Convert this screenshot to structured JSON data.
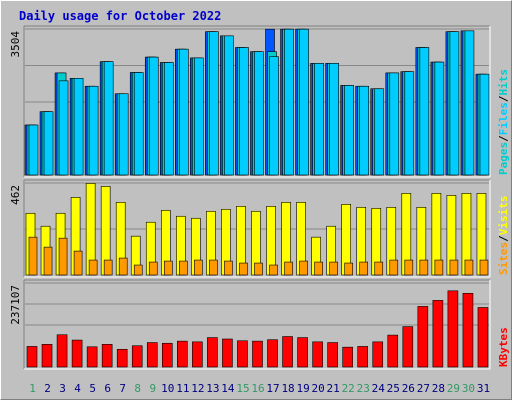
{
  "title": "Daily usage for October 2022",
  "colors": {
    "background": "#c0c0c0",
    "hits": "#00ccff",
    "files": "#00ccff",
    "pages": "#00cccc",
    "visits": "#ffff00",
    "sites": "#ff9900",
    "kbytes": "#ff0000",
    "weekend_label": "#339966",
    "weekday_label": "#000080",
    "title": "#0000cc"
  },
  "chart_data": [
    {
      "type": "bar",
      "panel": "hits-files-pages",
      "legend": [
        "Pages",
        "/",
        "Files",
        "/",
        "Hits"
      ],
      "y_max_label": "3504",
      "ylim": [
        0,
        3504
      ],
      "categories": [
        "1",
        "2",
        "3",
        "4",
        "5",
        "6",
        "7",
        "8",
        "9",
        "10",
        "11",
        "12",
        "13",
        "14",
        "15",
        "16",
        "17",
        "18",
        "19",
        "20",
        "21",
        "22",
        "23",
        "24",
        "25",
        "26",
        "27",
        "28",
        "29",
        "30",
        "31"
      ],
      "series": [
        {
          "name": "Hits",
          "values": [
            1200,
            1520,
            2450,
            2320,
            2130,
            2720,
            1950,
            2460,
            2830,
            2700,
            3020,
            2810,
            3440,
            3340,
            3060,
            2960,
            3500,
            3500,
            3500,
            2680,
            2680,
            2150,
            2130,
            2070,
            2450,
            2480,
            3060,
            2710,
            3440,
            3460,
            2420
          ]
        },
        {
          "name": "Files",
          "values": [
            1200,
            1520,
            2260,
            2320,
            2130,
            2720,
            1950,
            2460,
            2830,
            2700,
            3020,
            2810,
            3440,
            3340,
            3060,
            2960,
            2840,
            3500,
            3500,
            2680,
            2680,
            2150,
            2130,
            2070,
            2450,
            2480,
            3060,
            2710,
            3440,
            3460,
            2420
          ]
        },
        {
          "name": "Pages",
          "values": [
            1200,
            1520,
            2450,
            2320,
            2130,
            2720,
            1950,
            2460,
            2830,
            2700,
            3020,
            2810,
            3440,
            3340,
            3060,
            2960,
            2960,
            3500,
            3500,
            2680,
            2680,
            2150,
            2130,
            2070,
            2450,
            2480,
            3060,
            2710,
            3440,
            3460,
            2420
          ]
        }
      ]
    },
    {
      "type": "bar",
      "panel": "visits-sites",
      "legend": [
        "Sites",
        "/",
        "Visits"
      ],
      "y_max_label": "462",
      "ylim": [
        0,
        462
      ],
      "categories": [
        "1",
        "2",
        "3",
        "4",
        "5",
        "6",
        "7",
        "8",
        "9",
        "10",
        "11",
        "12",
        "13",
        "14",
        "15",
        "16",
        "17",
        "18",
        "19",
        "20",
        "21",
        "22",
        "23",
        "24",
        "25",
        "26",
        "27",
        "28",
        "29",
        "30",
        "31"
      ],
      "series": [
        {
          "name": "Visits",
          "values": [
            310,
            245,
            310,
            390,
            460,
            445,
            365,
            195,
            265,
            325,
            295,
            285,
            320,
            330,
            345,
            320,
            345,
            365,
            365,
            190,
            245,
            355,
            340,
            335,
            340,
            410,
            340,
            410,
            400,
            410,
            410
          ]
        },
        {
          "name": "Sites",
          "values": [
            190,
            140,
            185,
            120,
            75,
            75,
            85,
            50,
            65,
            70,
            70,
            75,
            75,
            70,
            60,
            60,
            50,
            65,
            70,
            65,
            65,
            60,
            65,
            65,
            75,
            75,
            75,
            75,
            75,
            75,
            75
          ]
        }
      ]
    },
    {
      "type": "bar",
      "panel": "kbytes",
      "legend": [
        "KBytes"
      ],
      "y_max_label": "237107",
      "ylim": [
        0,
        237107
      ],
      "categories": [
        "1",
        "2",
        "3",
        "4",
        "5",
        "6",
        "7",
        "8",
        "9",
        "10",
        "11",
        "12",
        "13",
        "14",
        "15",
        "16",
        "17",
        "18",
        "19",
        "20",
        "21",
        "22",
        "23",
        "24",
        "25",
        "26",
        "27",
        "28",
        "29",
        "30",
        "31"
      ],
      "series": [
        {
          "name": "KBytes",
          "values": [
            58000,
            64000,
            91000,
            76000,
            57000,
            64000,
            50000,
            60000,
            69000,
            67000,
            73000,
            71000,
            83000,
            79000,
            74000,
            73000,
            77000,
            86000,
            83000,
            71000,
            69000,
            56000,
            58000,
            71000,
            90000,
            114000,
            171000,
            188000,
            215000,
            208000,
            168000
          ]
        }
      ]
    }
  ],
  "weekend_days": [
    "1",
    "8",
    "9",
    "15",
    "16",
    "22",
    "23",
    "29",
    "30"
  ]
}
